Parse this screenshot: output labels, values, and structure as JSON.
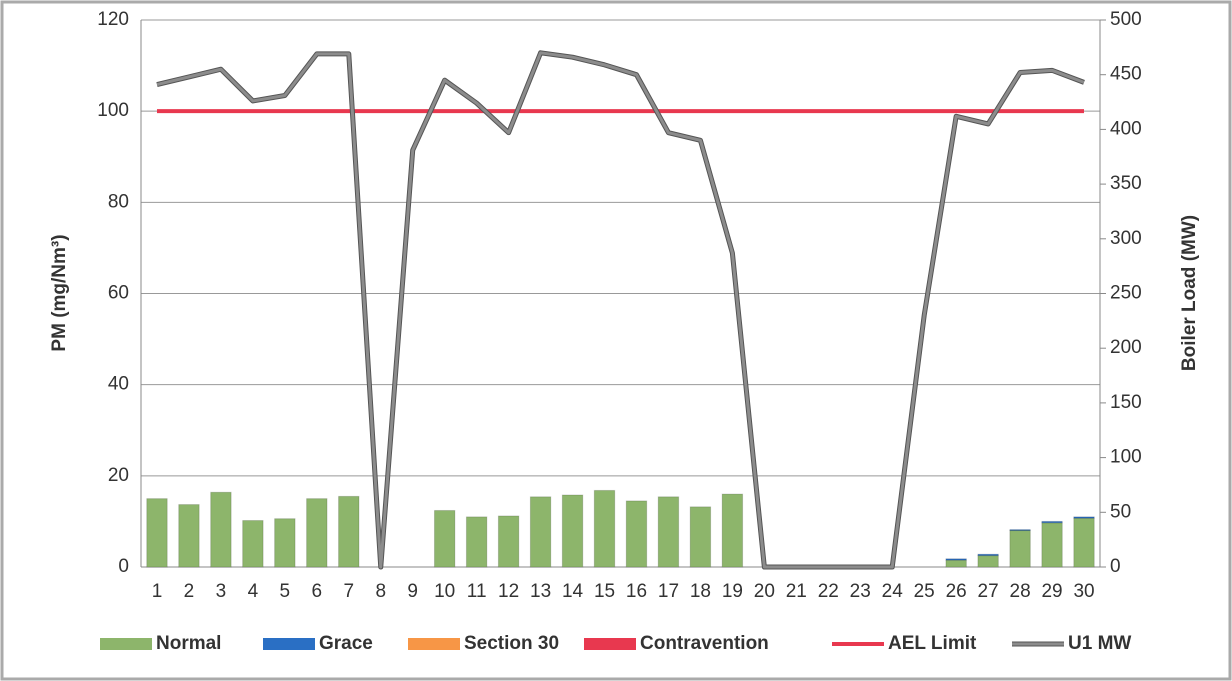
{
  "chart_data": {
    "type": "bar",
    "y_label": "PM (mg/Nm³)",
    "y2_label": "Boiler Load (MW)",
    "categories": [
      "1",
      "2",
      "3",
      "4",
      "5",
      "6",
      "7",
      "8",
      "9",
      "10",
      "11",
      "12",
      "13",
      "14",
      "15",
      "16",
      "17",
      "18",
      "19",
      "20",
      "21",
      "22",
      "23",
      "24",
      "25",
      "26",
      "27",
      "28",
      "29",
      "30"
    ],
    "series": [
      {
        "name": "Normal",
        "kind": "bar",
        "color": "#8db56b",
        "values": [
          15,
          13.7,
          16.4,
          10.2,
          10.6,
          15,
          15.5,
          0,
          0,
          12.4,
          11,
          11.2,
          15.4,
          15.8,
          16.8,
          14.5,
          15.4,
          13.2,
          16,
          0,
          0,
          0,
          0,
          0,
          0,
          1.5,
          2.5,
          8,
          9.7,
          10.7
        ]
      },
      {
        "name": "Grace",
        "kind": "bar",
        "color": "#2a6fc4",
        "values": [
          0,
          0,
          0,
          0,
          0,
          0,
          0,
          0,
          0,
          0,
          0,
          0,
          0,
          0,
          0,
          0,
          0,
          0,
          0,
          0,
          0,
          0,
          0,
          0,
          0,
          0.3,
          0.3,
          0.2,
          0.3,
          0.3
        ]
      },
      {
        "name": "Section 30",
        "kind": "bar",
        "color": "#f79646",
        "values": [
          0,
          0,
          0,
          0,
          0,
          0,
          0,
          0,
          0,
          0,
          0,
          0,
          0,
          0,
          0,
          0,
          0,
          0,
          0,
          0,
          0,
          0,
          0,
          0,
          0,
          0,
          0,
          0,
          0,
          0
        ]
      },
      {
        "name": "Contravention",
        "kind": "bar",
        "color": "#e8384f",
        "values": [
          0,
          0,
          0,
          0,
          0,
          0,
          0,
          0,
          0,
          0,
          0,
          0,
          0,
          0,
          0,
          0,
          0,
          0,
          0,
          0,
          0,
          0,
          0,
          0,
          0,
          0,
          0,
          0,
          0,
          0
        ]
      },
      {
        "name": "AEL Limit",
        "kind": "line",
        "color": "#e8384f",
        "values": [
          100,
          100,
          100,
          100,
          100,
          100,
          100,
          100,
          100,
          100,
          100,
          100,
          100,
          100,
          100,
          100,
          100,
          100,
          100,
          100,
          100,
          100,
          100,
          100,
          100,
          100,
          100,
          100,
          100,
          100
        ]
      },
      {
        "name": "U1 MW",
        "kind": "line",
        "axis": "y2",
        "color": "#8c8c8c",
        "values": [
          441,
          448,
          455,
          426,
          431,
          469,
          469,
          0,
          381,
          445,
          424,
          397,
          470,
          466,
          459,
          450,
          397,
          390,
          287,
          0,
          0,
          0,
          0,
          0,
          230,
          412,
          405,
          452,
          454,
          443
        ]
      }
    ],
    "ylim": [
      0,
      120
    ],
    "yticks": [
      0,
      20,
      40,
      60,
      80,
      100,
      120
    ],
    "y2lim": [
      0,
      500
    ],
    "y2ticks": [
      0,
      50,
      100,
      150,
      200,
      250,
      300,
      350,
      400,
      450,
      500
    ],
    "grid": true,
    "legend": "bottom"
  }
}
